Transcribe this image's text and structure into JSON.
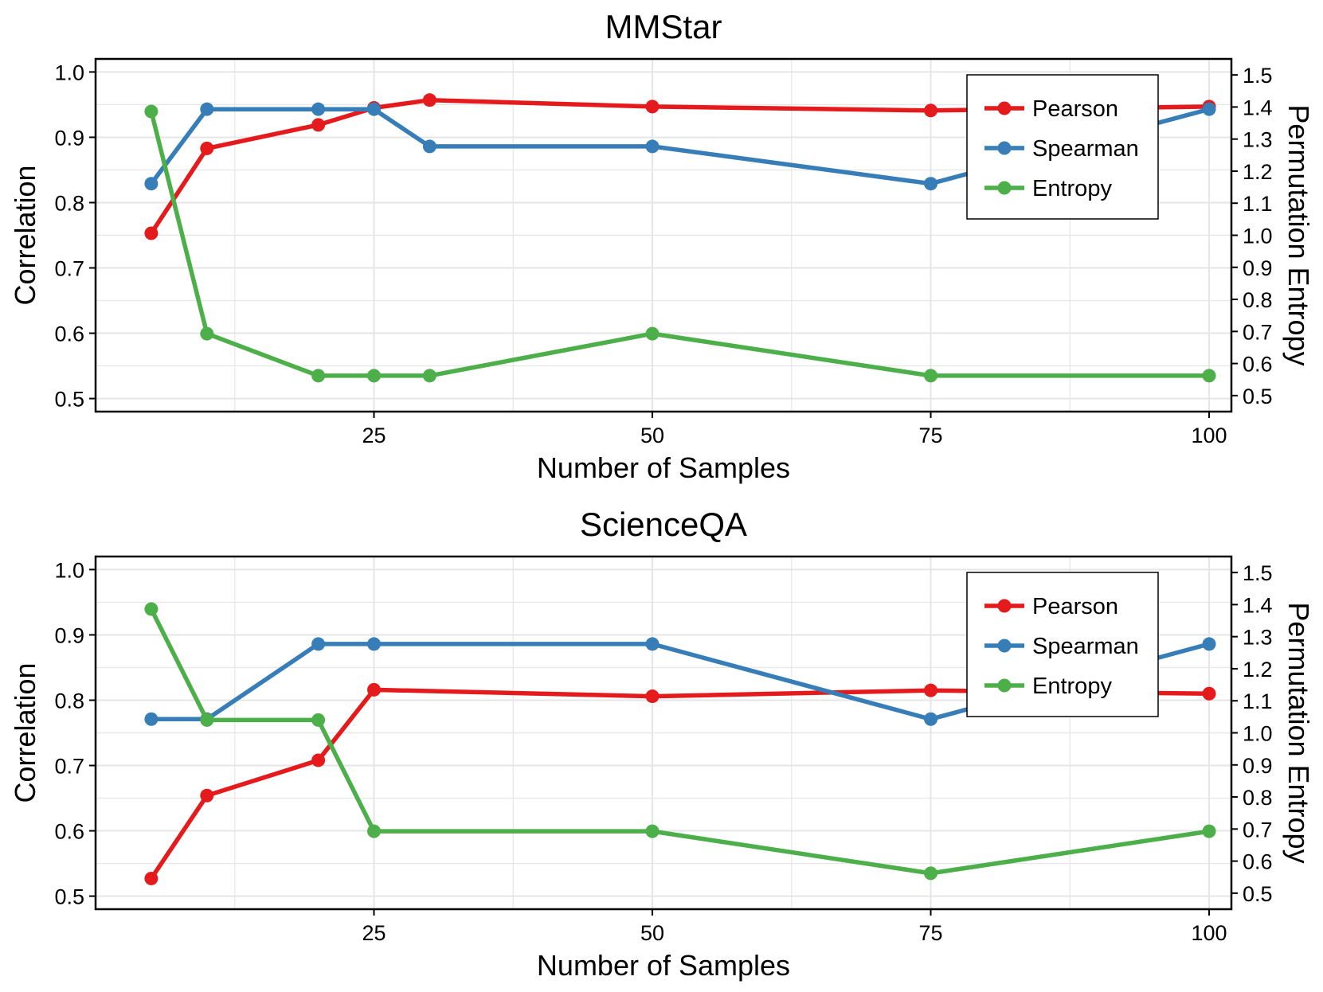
{
  "colors": {
    "Pearson": "#e41a1c",
    "Spearman": "#377eb8",
    "Entropy": "#4daf4a",
    "grid": "#e6e6e6"
  },
  "chart_data": [
    {
      "type": "line",
      "title": "MMStar",
      "xlabel": "Number of Samples",
      "ylabel": "Correlation",
      "y2label": "Permutation Entropy",
      "x": [
        5,
        10,
        20,
        25,
        30,
        50,
        75,
        100
      ],
      "xlim": [
        0,
        102
      ],
      "ylim": [
        0.48,
        1.02
      ],
      "y2lim": [
        0.45,
        1.55
      ],
      "xticks": [
        "25",
        "50",
        "75",
        "100"
      ],
      "yticks": [
        "0.5",
        "0.6",
        "0.7",
        "0.8",
        "0.9",
        "1.0"
      ],
      "y2ticks": [
        "0.5",
        "0.6",
        "0.7",
        "0.8",
        "0.9",
        "1.0",
        "1.1",
        "1.2",
        "1.3",
        "1.4",
        "1.5"
      ],
      "grid": true,
      "legend_position": "top-right",
      "series": [
        {
          "name": "Pearson",
          "axis": "left",
          "values": [
            0.753,
            0.883,
            0.919,
            0.945,
            0.957,
            0.947,
            0.941,
            0.947
          ]
        },
        {
          "name": "Spearman",
          "axis": "left",
          "values": [
            0.829,
            0.943,
            0.943,
            0.943,
            0.886,
            0.886,
            0.829,
            0.943
          ]
        },
        {
          "name": "Entropy",
          "axis": "right",
          "values": [
            1.386,
            0.693,
            0.562,
            0.562,
            0.562,
            0.693,
            0.562,
            0.562
          ]
        }
      ]
    },
    {
      "type": "line",
      "title": "ScienceQA",
      "xlabel": "Number of Samples",
      "ylabel": "Correlation",
      "y2label": "Permutation Entropy",
      "x": [
        5,
        10,
        20,
        25,
        50,
        75,
        100
      ],
      "xlim": [
        0,
        102
      ],
      "ylim": [
        0.48,
        1.02
      ],
      "y2lim": [
        0.45,
        1.55
      ],
      "xticks": [
        "25",
        "50",
        "75",
        "100"
      ],
      "yticks": [
        "0.5",
        "0.6",
        "0.7",
        "0.8",
        "0.9",
        "1.0"
      ],
      "y2ticks": [
        "0.5",
        "0.6",
        "0.7",
        "0.8",
        "0.9",
        "1.0",
        "1.1",
        "1.2",
        "1.3",
        "1.4",
        "1.5"
      ],
      "grid": true,
      "legend_position": "top-right",
      "series": [
        {
          "name": "Pearson",
          "axis": "left",
          "values": [
            0.527,
            0.654,
            0.708,
            0.816,
            0.806,
            0.815,
            0.81
          ]
        },
        {
          "name": "Spearman",
          "axis": "left",
          "values": [
            0.771,
            0.771,
            0.886,
            0.886,
            0.886,
            0.771,
            0.886
          ]
        },
        {
          "name": "Entropy",
          "axis": "right",
          "values": [
            1.386,
            1.04,
            1.04,
            0.693,
            0.693,
            0.562,
            0.693
          ]
        }
      ]
    }
  ]
}
